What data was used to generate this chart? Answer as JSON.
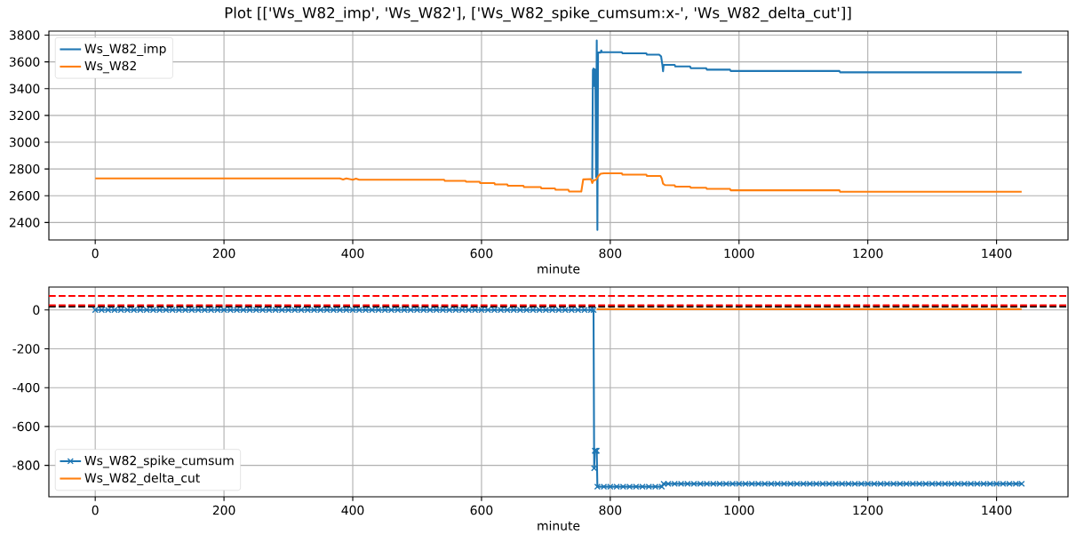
{
  "chart_data": [
    {
      "type": "line",
      "title": "Plot [['Ws_W82_imp', 'Ws_W82'], ['Ws_W82_spike_cumsum:x-', 'Ws_W82_delta_cut']]",
      "xlabel": "minute",
      "xlim": [
        -72,
        1511
      ],
      "xticks": [
        0,
        200,
        400,
        600,
        800,
        1000,
        1200,
        1400
      ],
      "ylim": [
        2270,
        3830
      ],
      "yticks": [
        2400,
        2600,
        2800,
        3000,
        3200,
        3400,
        3600,
        3800
      ],
      "grid": true,
      "legend": "top left",
      "series": [
        {
          "name": "Ws_W82_imp",
          "color": "#1f77b4",
          "x": [
            772,
            773,
            774,
            775,
            776,
            777,
            778,
            779,
            780,
            781,
            785,
            786,
            787,
            818,
            819,
            856,
            857,
            876,
            879,
            881,
            882,
            883,
            900,
            901,
            924,
            925,
            949,
            950,
            986,
            987,
            1156,
            1157,
            1439
          ],
          "values": [
            2722,
            3540,
            3550,
            3420,
            3545,
            3410,
            2740,
            3760,
            2345,
            3670,
            3670,
            3685,
            3672,
            3672,
            3664,
            3664,
            3654,
            3654,
            3640,
            3575,
            3530,
            3578,
            3578,
            3566,
            3566,
            3553,
            3553,
            3542,
            3542,
            3532,
            3532,
            3522,
            3522
          ]
        },
        {
          "name": "Ws_W82",
          "color": "#ff7f0e",
          "x": [
            0,
            380,
            385,
            390,
            400,
            405,
            410,
            420,
            542,
            543,
            575,
            576,
            597,
            598,
            620,
            621,
            640,
            641,
            665,
            666,
            692,
            693,
            714,
            715,
            735,
            736,
            755,
            758,
            770,
            772,
            774,
            778,
            781,
            785,
            790,
            818,
            819,
            856,
            857,
            878,
            880,
            882,
            885,
            900,
            901,
            924,
            925,
            949,
            950,
            986,
            987,
            1156,
            1157,
            1439
          ],
          "values": [
            2730,
            2730,
            2722,
            2730,
            2720,
            2728,
            2720,
            2720,
            2720,
            2712,
            2712,
            2705,
            2705,
            2695,
            2695,
            2685,
            2685,
            2675,
            2675,
            2665,
            2665,
            2655,
            2655,
            2645,
            2645,
            2632,
            2632,
            2722,
            2725,
            2695,
            2715,
            2720,
            2745,
            2765,
            2768,
            2768,
            2758,
            2758,
            2748,
            2748,
            2730,
            2690,
            2680,
            2678,
            2668,
            2668,
            2660,
            2660,
            2652,
            2652,
            2641,
            2641,
            2630,
            2630
          ]
        }
      ]
    },
    {
      "type": "line",
      "xlabel": "minute",
      "xlim": [
        -72,
        1511
      ],
      "xticks": [
        0,
        200,
        400,
        600,
        800,
        1000,
        1200,
        1400
      ],
      "ylim": [
        -962,
        118
      ],
      "yticks": [
        -800,
        -600,
        -400,
        -200,
        0
      ],
      "grid": true,
      "legend": "bottom left",
      "ref_lines": [
        {
          "axis": "y",
          "value": 72,
          "color": "#ff0000",
          "line_style": "dashed"
        },
        {
          "axis": "y",
          "value": 18,
          "color": "#000000",
          "line_style": "dashed"
        },
        {
          "axis": "y",
          "value": 24,
          "color": "#ff0000",
          "line_style": "dashed"
        }
      ],
      "series": [
        {
          "name": "Ws_W82_spike_cumsum",
          "color": "#1f77b4",
          "marker": "cross",
          "x": [
            0,
            10,
            20,
            30,
            40,
            50,
            60,
            70,
            80,
            90,
            100,
            110,
            120,
            130,
            140,
            150,
            160,
            170,
            180,
            190,
            200,
            210,
            220,
            230,
            240,
            250,
            260,
            270,
            280,
            290,
            300,
            310,
            320,
            330,
            340,
            350,
            360,
            370,
            380,
            390,
            400,
            410,
            420,
            430,
            440,
            450,
            460,
            470,
            480,
            490,
            500,
            510,
            520,
            530,
            540,
            550,
            560,
            570,
            580,
            590,
            600,
            610,
            620,
            630,
            640,
            650,
            660,
            670,
            680,
            690,
            700,
            710,
            720,
            730,
            740,
            750,
            760,
            770,
            774,
            775,
            776,
            777,
            778,
            779,
            780,
            790,
            800,
            810,
            820,
            830,
            840,
            850,
            860,
            870,
            880,
            883,
            890,
            900,
            910,
            920,
            930,
            940,
            950,
            960,
            970,
            980,
            990,
            1000,
            1010,
            1020,
            1030,
            1040,
            1050,
            1060,
            1070,
            1080,
            1090,
            1100,
            1110,
            1120,
            1130,
            1140,
            1150,
            1160,
            1170,
            1180,
            1190,
            1200,
            1210,
            1220,
            1230,
            1240,
            1250,
            1260,
            1270,
            1280,
            1290,
            1300,
            1310,
            1320,
            1330,
            1340,
            1350,
            1360,
            1370,
            1380,
            1390,
            1400,
            1410,
            1420,
            1430,
            1439
          ],
          "values": [
            0,
            0,
            0,
            0,
            0,
            0,
            0,
            0,
            0,
            0,
            0,
            0,
            0,
            0,
            0,
            0,
            0,
            0,
            0,
            0,
            0,
            0,
            0,
            0,
            0,
            0,
            0,
            0,
            0,
            0,
            0,
            0,
            0,
            0,
            0,
            0,
            0,
            0,
            0,
            0,
            0,
            0,
            0,
            0,
            0,
            0,
            0,
            0,
            0,
            0,
            0,
            0,
            0,
            0,
            0,
            0,
            0,
            0,
            0,
            0,
            0,
            0,
            0,
            0,
            0,
            0,
            0,
            0,
            0,
            0,
            0,
            0,
            0,
            0,
            0,
            0,
            0,
            0,
            0,
            -815,
            -725,
            -725,
            -725,
            -725,
            -910,
            -910,
            -910,
            -910,
            -910,
            -910,
            -910,
            -910,
            -910,
            -910,
            -910,
            -895,
            -895,
            -895,
            -895,
            -895,
            -895,
            -895,
            -895,
            -895,
            -895,
            -895,
            -895,
            -895,
            -895,
            -895,
            -895,
            -895,
            -895,
            -895,
            -895,
            -895,
            -895,
            -895,
            -895,
            -895,
            -895,
            -895,
            -895,
            -895,
            -895,
            -895,
            -895,
            -895,
            -895,
            -895,
            -895,
            -895,
            -895,
            -895,
            -895,
            -895,
            -895,
            -895,
            -895,
            -895,
            -895,
            -895,
            -895,
            -895,
            -895,
            -895,
            -895,
            -895,
            -895,
            -895,
            -895,
            -895
          ]
        },
        {
          "name": "Ws_W82_delta_cut",
          "color": "#ff7f0e",
          "x": [
            779,
            1439
          ],
          "values": [
            4,
            4
          ]
        }
      ]
    }
  ]
}
